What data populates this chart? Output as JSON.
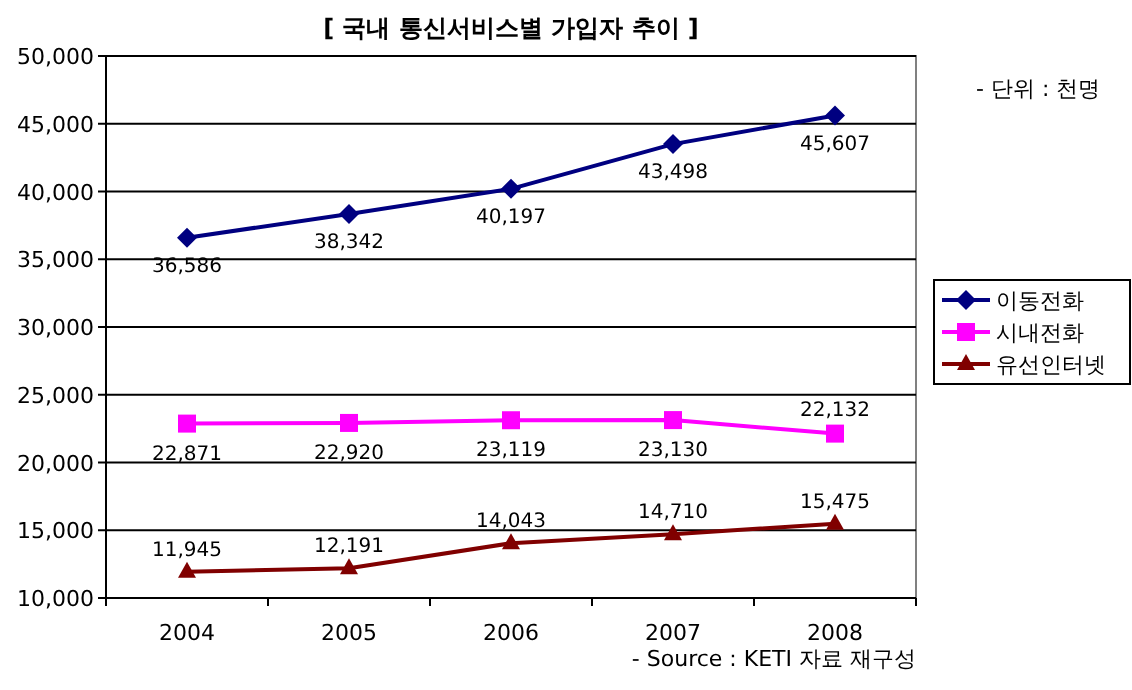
{
  "chart_data": {
    "type": "line",
    "title": "[ 국내 통신서비스별 가입자 추이 ]",
    "categories": [
      "2004",
      "2005",
      "2006",
      "2007",
      "2008"
    ],
    "series": [
      {
        "name": "이동전화",
        "color": "#000080",
        "marker": "diamond",
        "values": [
          36586,
          38342,
          40197,
          43498,
          45607
        ],
        "value_labels": [
          "36,586",
          "38,342",
          "40,197",
          "43,498",
          "45,607"
        ]
      },
      {
        "name": "시내전화",
        "color": "#ff00ff",
        "marker": "square",
        "values": [
          22871,
          22920,
          23119,
          23130,
          22132
        ],
        "value_labels": [
          "22,871",
          "22,920",
          "23,119",
          "23,130",
          "22,132"
        ]
      },
      {
        "name": "유선인터넷",
        "color": "#800000",
        "marker": "triangle",
        "values": [
          11945,
          12191,
          14043,
          14710,
          15475
        ],
        "value_labels": [
          "11,945",
          "12,191",
          "14,043",
          "14,710",
          "15,475"
        ]
      }
    ],
    "ylim": [
      10000,
      50000
    ],
    "yticks": [
      {
        "value": 10000,
        "label": "10,000"
      },
      {
        "value": 15000,
        "label": "15,000"
      },
      {
        "value": 20000,
        "label": "20,000"
      },
      {
        "value": 25000,
        "label": "25,000"
      },
      {
        "value": 30000,
        "label": "30,000"
      },
      {
        "value": 35000,
        "label": "35,000"
      },
      {
        "value": 40000,
        "label": "40,000"
      },
      {
        "value": 45000,
        "label": "45,000"
      },
      {
        "value": 50000,
        "label": "50,000"
      }
    ],
    "grid": "y",
    "legend": "right",
    "annotations": [
      "- 단위 : 천명",
      "- Source : KETI 자료 재구성"
    ]
  }
}
